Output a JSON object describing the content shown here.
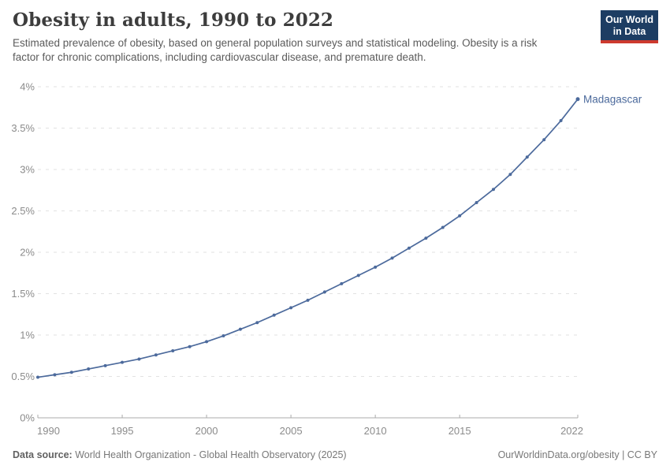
{
  "header": {
    "title": "Obesity in adults, 1990 to 2022",
    "subtitle": "Estimated prevalence of obesity, based on general population surveys and statistical modeling. Obesity is a risk factor for chronic complications, including cardiovascular disease, and premature death.",
    "logo_lines": [
      "Our World",
      "in Data"
    ],
    "logo_bg": "#1d3d63",
    "logo_bar": "#cd3a2e"
  },
  "chart_data": {
    "type": "line",
    "title": "Obesity in adults, 1990 to 2022",
    "xlabel": "",
    "ylabel": "",
    "xlim": [
      1990,
      2022
    ],
    "ylim": [
      0,
      4
    ],
    "grid": "horizontal-dashed",
    "legend_position": "end-of-line-label",
    "x": [
      1990,
      1991,
      1992,
      1993,
      1994,
      1995,
      1996,
      1997,
      1998,
      1999,
      2000,
      2001,
      2002,
      2003,
      2004,
      2005,
      2006,
      2007,
      2008,
      2009,
      2010,
      2011,
      2012,
      2013,
      2014,
      2015,
      2016,
      2017,
      2018,
      2019,
      2020,
      2021,
      2022
    ],
    "series": [
      {
        "name": "Madagascar",
        "color": "#4C6A9C",
        "values": [
          0.49,
          0.52,
          0.55,
          0.59,
          0.63,
          0.67,
          0.71,
          0.76,
          0.81,
          0.86,
          0.92,
          0.99,
          1.07,
          1.15,
          1.24,
          1.33,
          1.42,
          1.52,
          1.62,
          1.72,
          1.82,
          1.93,
          2.05,
          2.17,
          2.3,
          2.44,
          2.6,
          2.76,
          2.94,
          3.15,
          3.36,
          3.59,
          3.85
        ]
      }
    ],
    "yticks": [
      {
        "value": 0,
        "label": "0%"
      },
      {
        "value": 0.5,
        "label": "0.5%"
      },
      {
        "value": 1,
        "label": "1%"
      },
      {
        "value": 1.5,
        "label": "1.5%"
      },
      {
        "value": 2,
        "label": "2%"
      },
      {
        "value": 2.5,
        "label": "2.5%"
      },
      {
        "value": 3,
        "label": "3%"
      },
      {
        "value": 3.5,
        "label": "3.5%"
      },
      {
        "value": 4,
        "label": "4%"
      }
    ],
    "xticks": [
      {
        "value": 1990,
        "label": "1990"
      },
      {
        "value": 1995,
        "label": "1995"
      },
      {
        "value": 2000,
        "label": "2000"
      },
      {
        "value": 2005,
        "label": "2005"
      },
      {
        "value": 2010,
        "label": "2010"
      },
      {
        "value": 2015,
        "label": "2015"
      },
      {
        "value": 2022,
        "label": "2022"
      }
    ]
  },
  "footer": {
    "source_label": "Data source:",
    "source_text": " World Health Organization - Global Health Observatory (2025)",
    "link": "OurWorldinData.org/obesity",
    "license": " | CC BY"
  }
}
